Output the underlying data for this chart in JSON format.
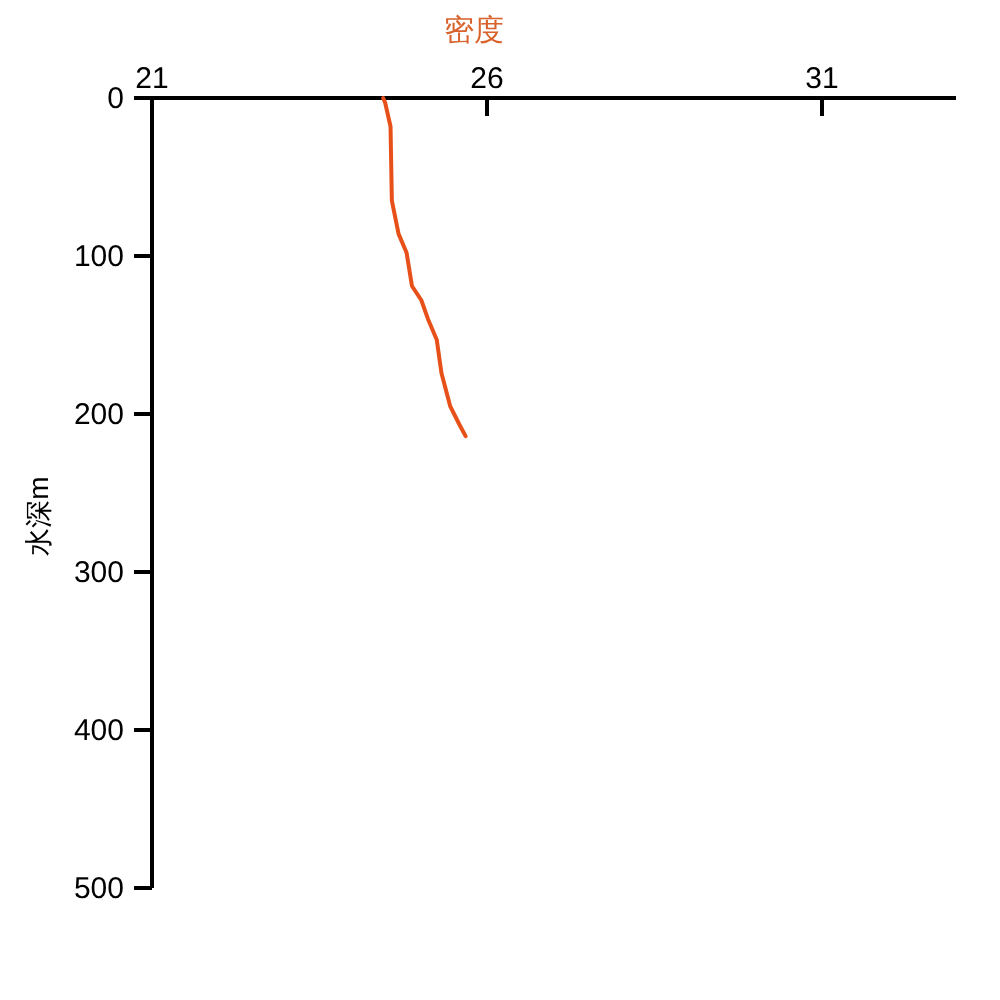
{
  "chart_data": {
    "type": "line",
    "xlabel": "密度",
    "ylabel": "水深m",
    "xlim": [
      21,
      33
    ],
    "xticks": [
      21,
      26,
      31
    ],
    "ylim": [
      500,
      0
    ],
    "yticks": [
      0,
      100,
      200,
      300,
      400,
      500
    ],
    "series": [
      {
        "color": "#e8501a",
        "x": [
          24.45,
          24.48,
          24.56,
          24.58,
          24.68,
          24.8,
          24.88,
          25.02,
          25.12,
          25.25,
          25.32,
          25.45,
          25.58,
          25.68
        ],
        "values": [
          0,
          3,
          18,
          65,
          86,
          98,
          119,
          128,
          140,
          153,
          174,
          195,
          206,
          214
        ]
      }
    ]
  }
}
